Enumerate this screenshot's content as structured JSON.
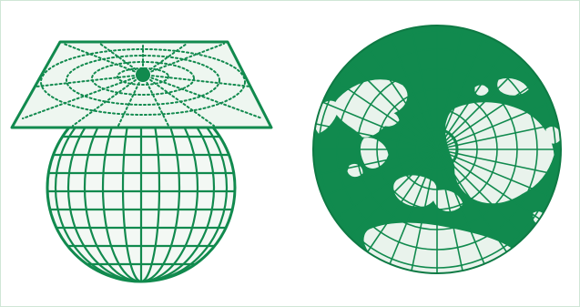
{
  "figure": {
    "colors": {
      "green": "#118a4e",
      "land": "#e9f3ec",
      "paper": "#ffffff",
      "frame": "#cfe6d6"
    },
    "left_panel": {
      "icon": "globe-with-projection-plane-icon"
    },
    "right_panel": {
      "icon": "polar-azimuthal-map-icon"
    }
  }
}
